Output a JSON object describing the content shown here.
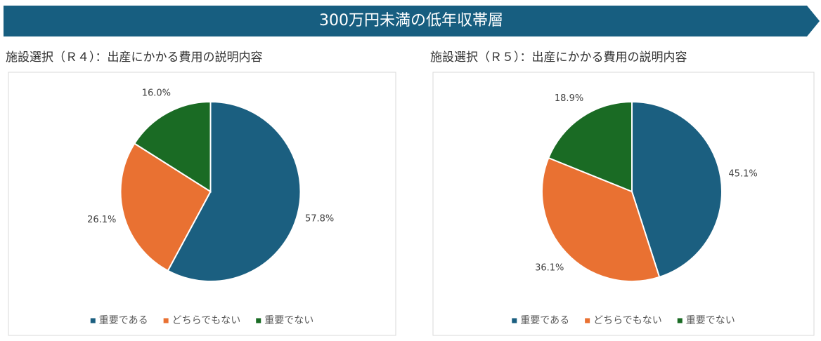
{
  "banner": {
    "title": "300万円未満の低年収帯層"
  },
  "chart_data": [
    {
      "type": "pie",
      "title": "施設選択（Ｒ４）：出産にかかる費用の説明内容",
      "categories": [
        "重要である",
        "どちらでもない",
        "重要でない"
      ],
      "values": [
        57.8,
        26.1,
        16.0
      ],
      "value_labels": [
        "57.8%",
        "26.1%",
        "16.0%"
      ],
      "colors": [
        "#1b5f80",
        "#e97132",
        "#1a6b24"
      ],
      "legend": "bottom"
    },
    {
      "type": "pie",
      "title": "施設選択（Ｒ５）：出産にかかる費用の説明内容",
      "categories": [
        "重要である",
        "どちらでもない",
        "重要でない"
      ],
      "values": [
        45.1,
        36.1,
        18.9
      ],
      "value_labels": [
        "45.1%",
        "36.1%",
        "18.9%"
      ],
      "colors": [
        "#1b5f80",
        "#e97132",
        "#1a6b24"
      ],
      "legend": "bottom"
    }
  ]
}
